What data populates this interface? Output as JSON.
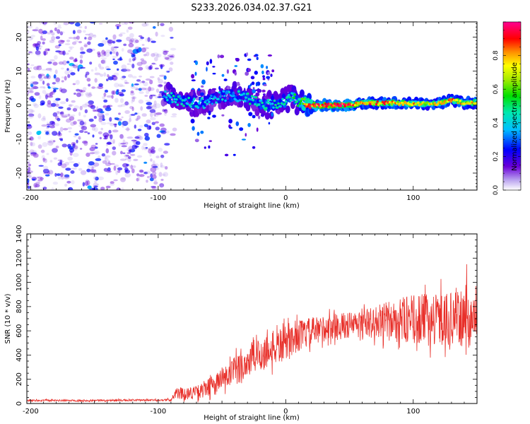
{
  "title": "S233.2026.034.02.37.G21",
  "chart_data": [
    {
      "type": "heatmap",
      "xlabel": "Height of straight line (km)",
      "ylabel": "Frequency (Hz)",
      "xlim": [
        -203,
        150
      ],
      "ylim": [
        -25,
        24.5
      ],
      "x_ticks": [
        -200,
        -100,
        0,
        100
      ],
      "x_tick_labels": [
        "-200",
        "-100",
        "0",
        "100"
      ],
      "y_ticks": [
        20,
        10,
        0,
        -10,
        -20
      ],
      "y_tick_labels": [
        "20",
        "10",
        "0",
        "-10",
        "-20"
      ],
      "colorbar": {
        "label": "Normalized spectral amplitude",
        "range": [
          0,
          1
        ],
        "ticks": [
          0,
          0.2,
          0.4,
          0.6,
          0.8
        ],
        "tick_labels": [
          "0.0",
          "0.2",
          "0.4",
          "0.6",
          "0.8"
        ],
        "colormap": "rainbow (purple-blue-cyan-green-yellow-orange-red-magenta)"
      },
      "features": {
        "noise_region_x": [
          -203,
          -93
        ],
        "noise_amplitude": [
          0.0,
          0.25
        ],
        "ridge": [
          {
            "x": -96,
            "y": 3.0,
            "a": 0.3
          },
          {
            "x": -92,
            "y": 2.5,
            "a": 0.45
          },
          {
            "x": -85,
            "y": 1.5,
            "a": 0.45
          },
          {
            "x": -75,
            "y": 1.0,
            "a": 0.45
          },
          {
            "x": -65,
            "y": 0.5,
            "a": 0.4
          },
          {
            "x": -55,
            "y": 2.0,
            "a": 0.4
          },
          {
            "x": -45,
            "y": 3.0,
            "a": 0.45
          },
          {
            "x": -35,
            "y": 2.5,
            "a": 0.45
          },
          {
            "x": -25,
            "y": 1.5,
            "a": 0.45
          },
          {
            "x": -15,
            "y": 0.0,
            "a": 0.45
          },
          {
            "x": -5,
            "y": 0.5,
            "a": 0.45
          },
          {
            "x": 5,
            "y": 2.5,
            "a": 0.5
          },
          {
            "x": 10,
            "y": 0.8,
            "a": 0.55
          },
          {
            "x": 20,
            "y": 0.0,
            "a": 0.95
          },
          {
            "x": 30,
            "y": 0.0,
            "a": 1.0
          },
          {
            "x": 40,
            "y": 0.0,
            "a": 1.0
          },
          {
            "x": 50,
            "y": 0.0,
            "a": 0.9
          },
          {
            "x": 60,
            "y": 0.6,
            "a": 0.85
          },
          {
            "x": 70,
            "y": 0.6,
            "a": 0.85
          },
          {
            "x": 80,
            "y": 0.6,
            "a": 0.85
          },
          {
            "x": 90,
            "y": 0.6,
            "a": 0.8
          },
          {
            "x": 100,
            "y": 0.4,
            "a": 0.85
          },
          {
            "x": 110,
            "y": 0.4,
            "a": 0.75
          },
          {
            "x": 120,
            "y": 0.5,
            "a": 0.8
          },
          {
            "x": 130,
            "y": 1.5,
            "a": 0.85
          },
          {
            "x": 140,
            "y": 0.6,
            "a": 0.8
          },
          {
            "x": 150,
            "y": 0.8,
            "a": 0.8
          }
        ]
      }
    },
    {
      "type": "line",
      "xlabel": "Height of straight line (km)",
      "ylabel": "SNR (10 * v/v)",
      "xlim": [
        -203,
        150
      ],
      "ylim": [
        0,
        1400
      ],
      "x_ticks": [
        -200,
        -100,
        0,
        100
      ],
      "x_tick_labels": [
        "-200",
        "-100",
        "0",
        "100"
      ],
      "y_ticks": [
        0,
        200,
        400,
        600,
        800,
        1000,
        1200,
        1400
      ],
      "y_tick_labels": [
        "0",
        "200",
        "400",
        "600",
        "800",
        "1000",
        "1200",
        "1400"
      ],
      "color": "#e8302a",
      "series": [
        {
          "name": "SNR",
          "envelope": [
            {
              "x": -203,
              "mean": 25,
              "spread": 15
            },
            {
              "x": -150,
              "mean": 25,
              "spread": 15
            },
            {
              "x": -100,
              "mean": 28,
              "spread": 15
            },
            {
              "x": -89,
              "mean": 30,
              "spread": 20
            },
            {
              "x": -88,
              "mean": 80,
              "spread": 90
            },
            {
              "x": -70,
              "mean": 90,
              "spread": 110
            },
            {
              "x": -55,
              "mean": 160,
              "spread": 180
            },
            {
              "x": -40,
              "mean": 260,
              "spread": 260
            },
            {
              "x": -25,
              "mean": 380,
              "spread": 300
            },
            {
              "x": -10,
              "mean": 450,
              "spread": 300
            },
            {
              "x": 0,
              "mean": 500,
              "spread": 280
            },
            {
              "x": 10,
              "mean": 560,
              "spread": 260
            },
            {
              "x": 30,
              "mean": 620,
              "spread": 220
            },
            {
              "x": 60,
              "mean": 660,
              "spread": 220
            },
            {
              "x": 90,
              "mean": 690,
              "spread": 380
            },
            {
              "x": 120,
              "mean": 700,
              "spread": 440
            },
            {
              "x": 150,
              "mean": 700,
              "spread": 460
            }
          ],
          "peak": {
            "x": 142,
            "value": 1150
          }
        }
      ]
    }
  ]
}
